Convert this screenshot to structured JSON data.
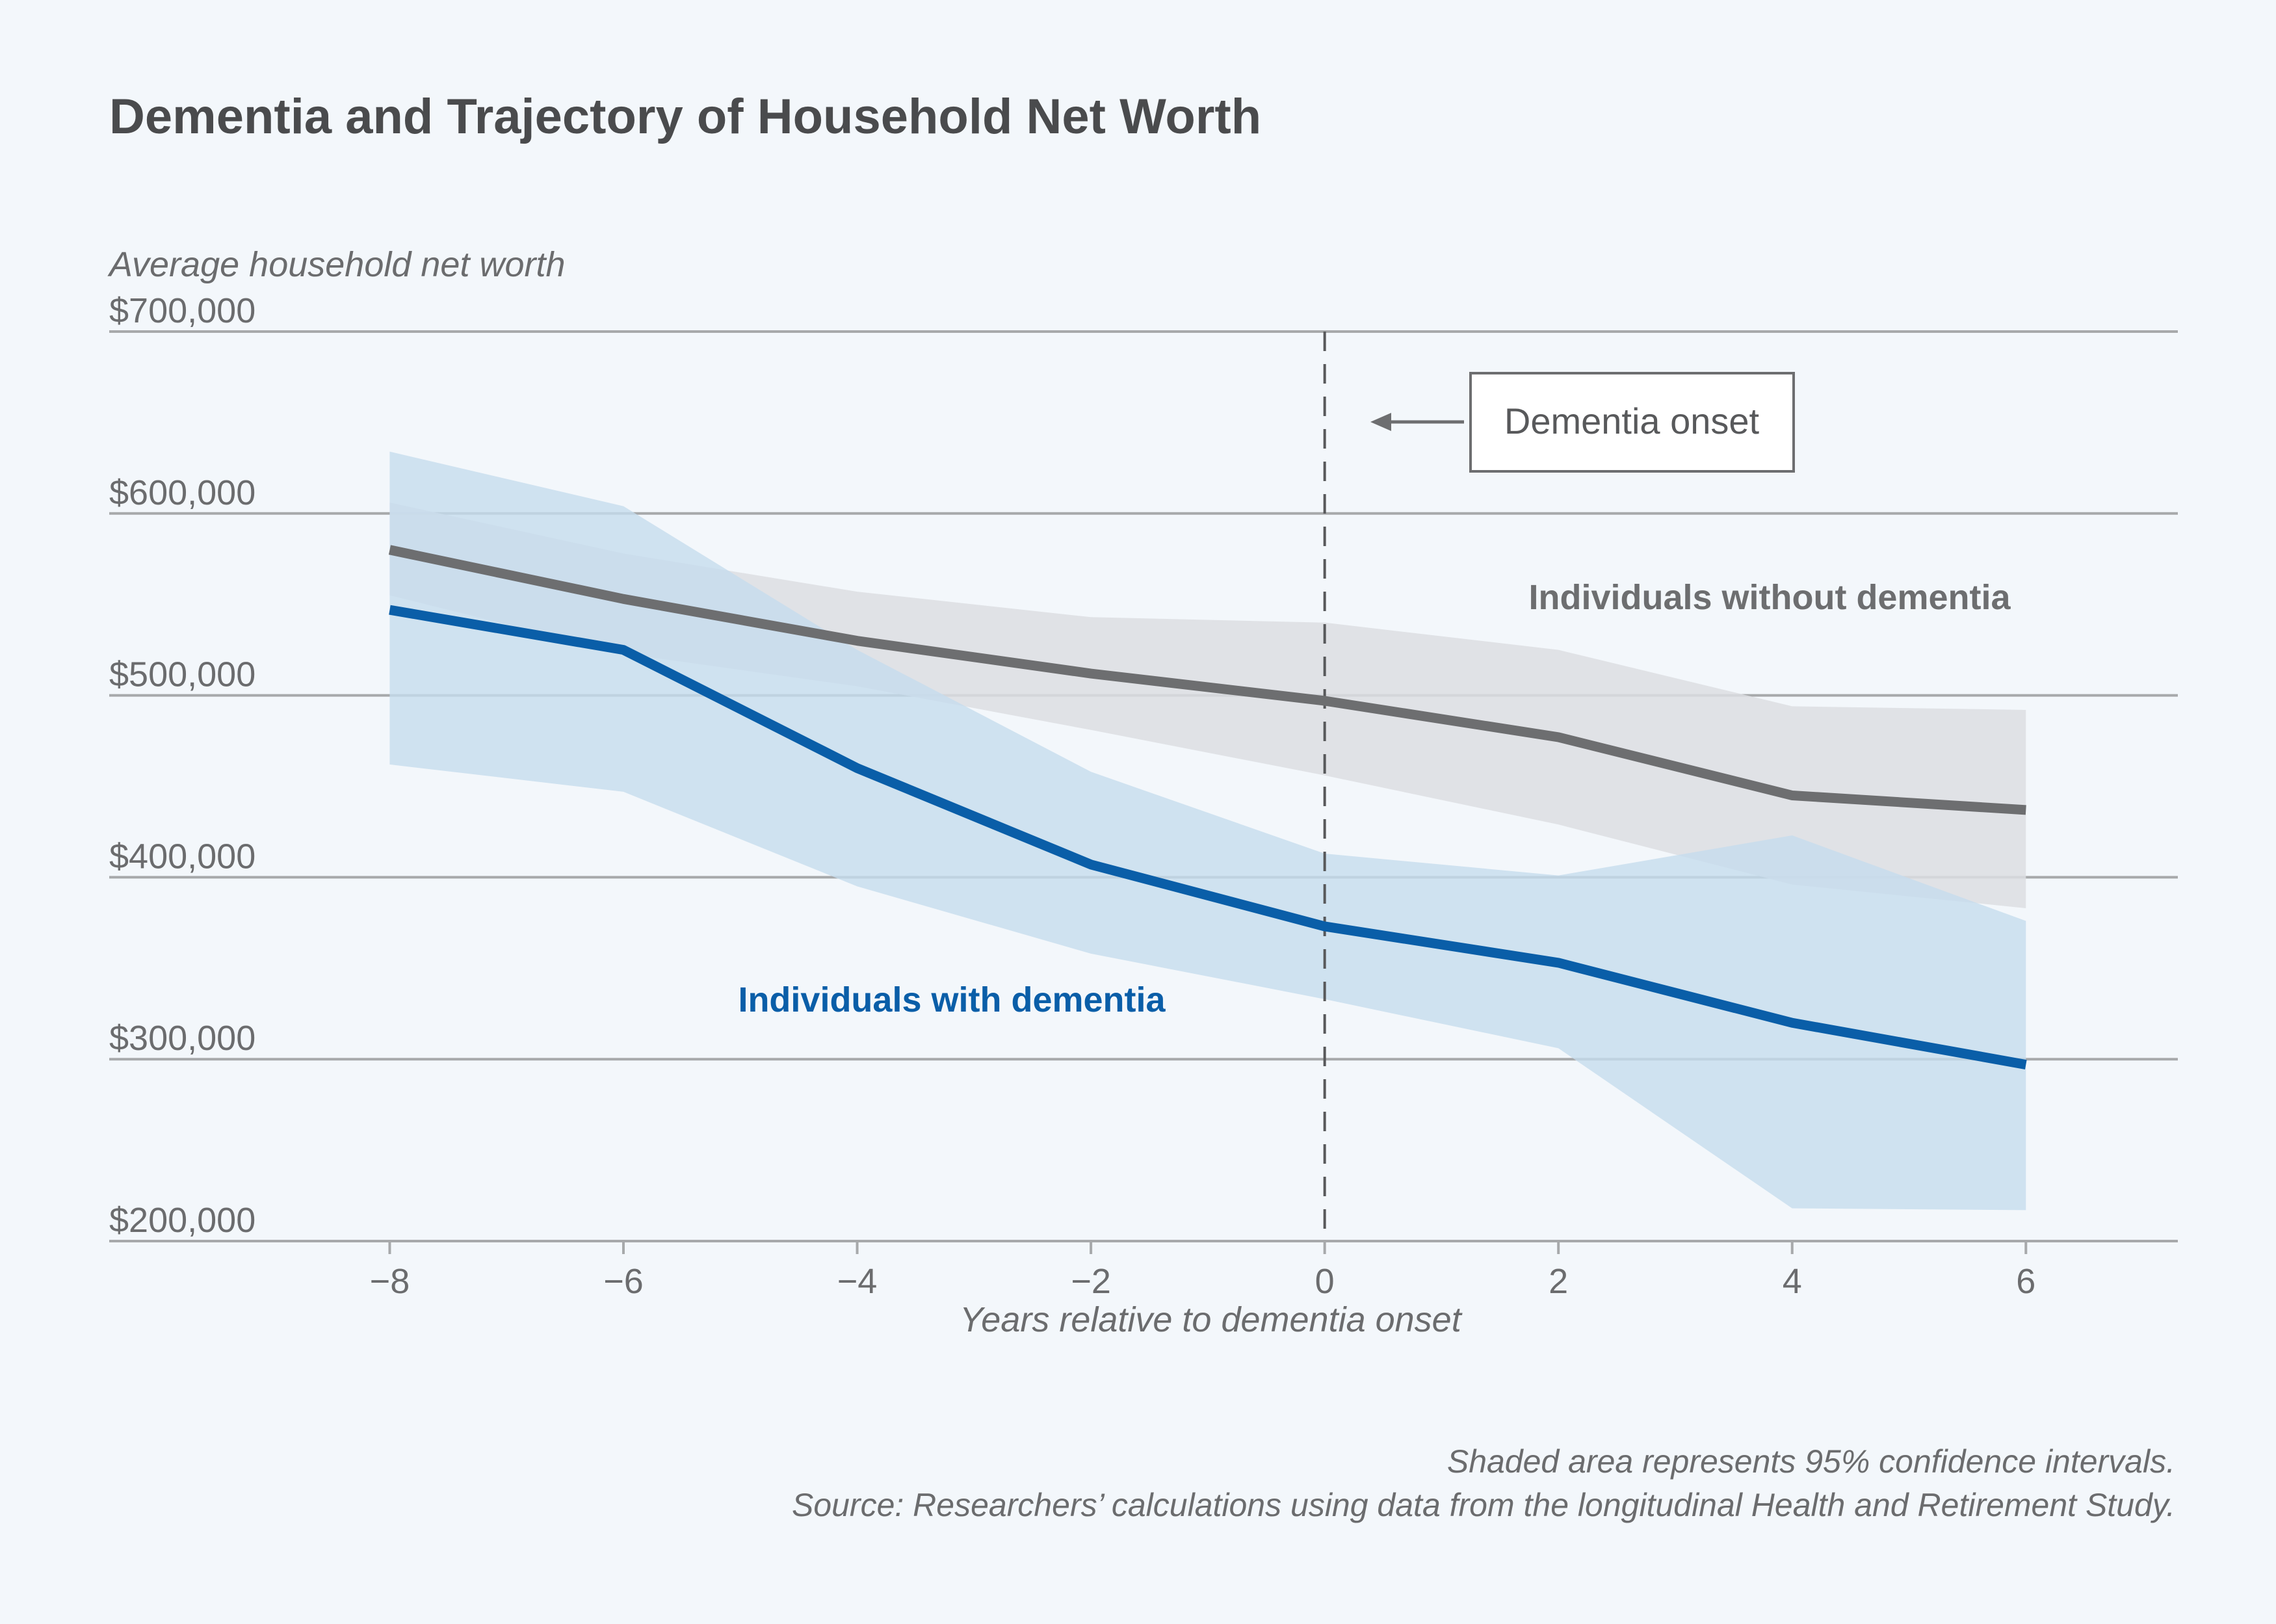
{
  "title": "Dementia and Trajectory of Household Net Worth",
  "colors": {
    "background": "#f3f7fb",
    "with_dementia": "#0a5ea8",
    "with_dementia_ci": "#c6dcee",
    "without_dementia": "#6d6e70",
    "without_dementia_ci": "#dcdee2",
    "grid": "#a7a9ab"
  },
  "annotation": {
    "label": "Dementia onset",
    "x": 0
  },
  "notes": {
    "line1": "Shaded area represents 95% confidence intervals.",
    "line2": "Source: Researchers’ calculations using data from the longitudinal Health and Retirement Study."
  },
  "chart_data": {
    "type": "line",
    "title": "Dementia and Trajectory of Household Net Worth",
    "xlabel": "Years relative to dementia onset",
    "ylabel": "Average household net worth",
    "x": [
      -8,
      -6,
      -4,
      -2,
      0,
      2,
      4,
      6
    ],
    "xlim": [
      -10.4,
      7.3
    ],
    "xticks": [
      -8,
      -6,
      -4,
      -2,
      0,
      2,
      4,
      6
    ],
    "xtick_labels": [
      "−8",
      "−6",
      "−4",
      "−2",
      "0",
      "2",
      "4",
      "6"
    ],
    "ylim": [
      200000,
      700000
    ],
    "yticks": [
      200000,
      300000,
      400000,
      500000,
      600000,
      700000
    ],
    "ytick_labels": [
      "$200,000",
      "$300,000",
      "$400,000",
      "$500,000",
      "$600,000",
      "$700,000"
    ],
    "grid": "horizontal",
    "series": [
      {
        "name": "Individuals without dementia",
        "color": "#6d6e70",
        "values": [
          580000,
          553000,
          530000,
          512000,
          497000,
          477000,
          445000,
          437000
        ],
        "ci_lower": [
          555000,
          523000,
          505000,
          481000,
          456000,
          429000,
          396000,
          383000
        ],
        "ci_upper": [
          606000,
          578000,
          557000,
          543000,
          540000,
          525000,
          494000,
          492000
        ]
      },
      {
        "name": "Individuals with dementia",
        "color": "#0a5ea8",
        "values": [
          547000,
          525000,
          460000,
          407000,
          373000,
          353000,
          320000,
          297000
        ],
        "ci_lower": [
          462000,
          447000,
          395000,
          358000,
          333000,
          306000,
          218000,
          217000
        ],
        "ci_upper": [
          634000,
          604000,
          525000,
          458000,
          413000,
          401000,
          423000,
          376000
        ]
      }
    ]
  }
}
